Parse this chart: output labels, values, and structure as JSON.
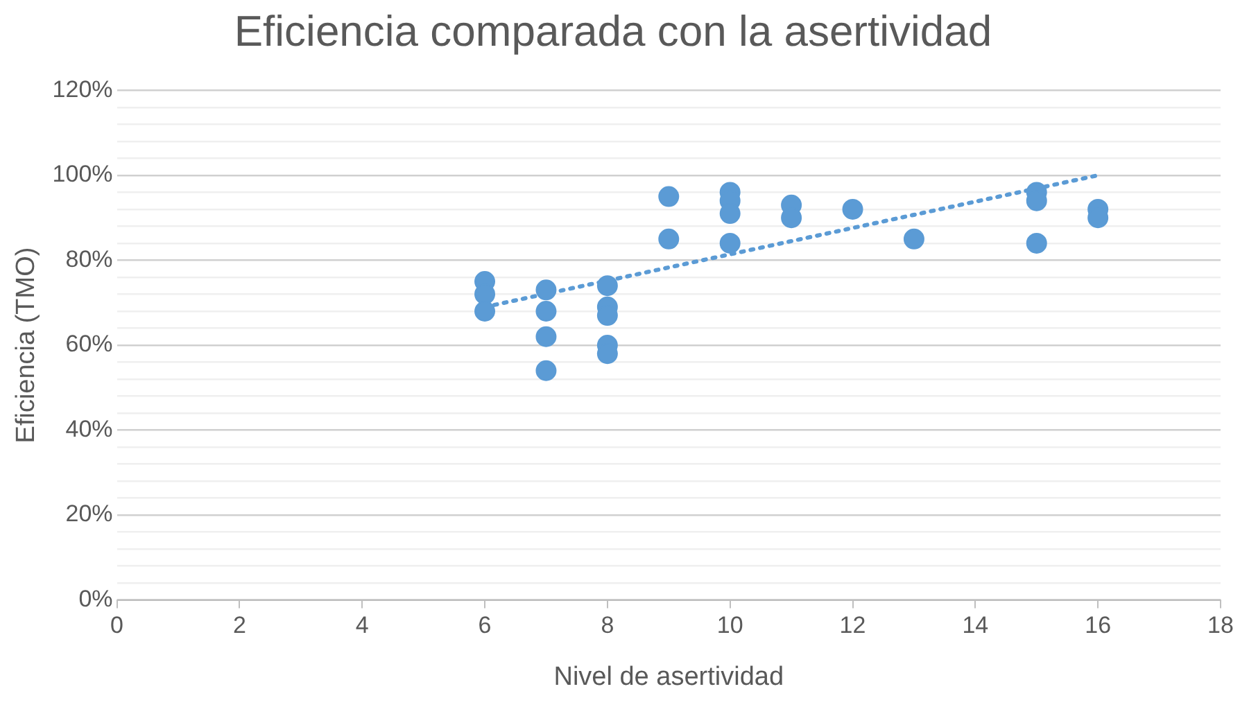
{
  "chart_data": {
    "type": "scatter",
    "title": "Eficiencia comparada con la asertividad",
    "xlabel": "Nivel de asertividad",
    "ylabel": "Eficiencia (TMO)",
    "xlim": [
      0,
      18
    ],
    "xticks": [
      0,
      2,
      4,
      6,
      8,
      10,
      12,
      14,
      16,
      18
    ],
    "ylim": [
      0,
      120
    ],
    "yticks": [
      {
        "value": 0,
        "label": "0%"
      },
      {
        "value": 4,
        "label": null
      },
      {
        "value": 8,
        "label": null
      },
      {
        "value": 12,
        "label": null
      },
      {
        "value": 16,
        "label": null
      },
      {
        "value": 20,
        "label": "20%"
      },
      {
        "value": 24,
        "label": null
      },
      {
        "value": 28,
        "label": null
      },
      {
        "value": 32,
        "label": null
      },
      {
        "value": 36,
        "label": null
      },
      {
        "value": 40,
        "label": "40%"
      },
      {
        "value": 44,
        "label": null
      },
      {
        "value": 48,
        "label": null
      },
      {
        "value": 52,
        "label": null
      },
      {
        "value": 56,
        "label": null
      },
      {
        "value": 60,
        "label": "60%"
      },
      {
        "value": 64,
        "label": null
      },
      {
        "value": 68,
        "label": null
      },
      {
        "value": 72,
        "label": null
      },
      {
        "value": 76,
        "label": null
      },
      {
        "value": 80,
        "label": "80%"
      },
      {
        "value": 84,
        "label": null
      },
      {
        "value": 88,
        "label": null
      },
      {
        "value": 92,
        "label": null
      },
      {
        "value": 96,
        "label": null
      },
      {
        "value": 100,
        "label": "100%"
      },
      {
        "value": 104,
        "label": null
      },
      {
        "value": 108,
        "label": null
      },
      {
        "value": 112,
        "label": null
      },
      {
        "value": 116,
        "label": null
      },
      {
        "value": 120,
        "label": "120%"
      }
    ],
    "grid": "y",
    "legend": false,
    "marker": "circle",
    "series": [
      {
        "color": "#5b9bd5",
        "x": [
          6,
          6,
          6,
          7,
          7,
          7,
          7,
          8,
          8,
          8,
          8,
          8,
          9,
          9,
          10,
          10,
          10,
          10,
          11,
          11,
          12,
          13,
          15,
          15,
          15,
          16,
          16
        ],
        "values": [
          75,
          72,
          68,
          73,
          68,
          62,
          54,
          74,
          69,
          67,
          60,
          58,
          95,
          85,
          96,
          94,
          91,
          84,
          93,
          90,
          92,
          85,
          96,
          94,
          84,
          92,
          90
        ]
      },
      {
        "type": "line",
        "color": "#5b9bd5",
        "line_style": "dotted",
        "marker": "none",
        "x": [
          6,
          16
        ],
        "values": [
          69,
          100
        ]
      }
    ]
  }
}
